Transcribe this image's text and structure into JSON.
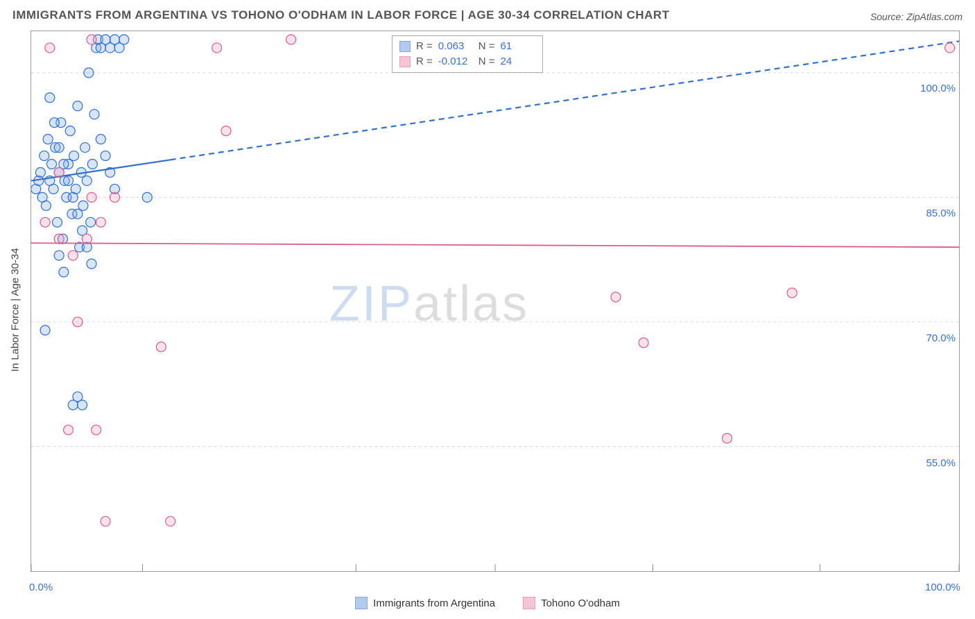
{
  "title": "IMMIGRANTS FROM ARGENTINA VS TOHONO O'ODHAM IN LABOR FORCE | AGE 30-34 CORRELATION CHART",
  "source": "Source: ZipAtlas.com",
  "ylabel": "In Labor Force | Age 30-34",
  "watermark": {
    "zip": "ZIP",
    "rest": "atlas"
  },
  "chart": {
    "type": "scatter",
    "xlim": [
      0,
      100
    ],
    "ylim": [
      40,
      105
    ],
    "x_ticks": [
      0,
      12,
      35,
      50,
      67,
      85,
      100
    ],
    "x_tick_labels": {
      "0": "0.0%",
      "100": "100.0%"
    },
    "y_ticks": [
      55,
      70,
      85,
      100
    ],
    "y_tick_labels": {
      "55": "55.0%",
      "70": "70.0%",
      "85": "85.0%",
      "100": "100.0%"
    },
    "grid_color": "#d8d8d8",
    "grid_dash": "4 4",
    "plot_border_color": "#999999",
    "background_color": "#ffffff",
    "marker_radius": 7,
    "marker_stroke_width": 1.2,
    "fill_opacity": 0.3,
    "series": [
      {
        "name": "Immigrants from Argentina",
        "stroke_color": "#2e6fd0",
        "fill_color": "#7ea8e3",
        "trend": {
          "y_at_x0": 87.0,
          "y_at_x100": 103.8,
          "solid_until_x": 15,
          "line_width": 2.2,
          "dash": "8 6"
        },
        "points": [
          [
            0.5,
            86
          ],
          [
            0.8,
            87
          ],
          [
            1.0,
            88
          ],
          [
            1.2,
            85
          ],
          [
            1.4,
            90
          ],
          [
            1.6,
            84
          ],
          [
            1.8,
            92
          ],
          [
            2.0,
            87
          ],
          [
            2.2,
            89
          ],
          [
            2.4,
            86
          ],
          [
            2.6,
            91
          ],
          [
            2.8,
            82
          ],
          [
            3.0,
            88
          ],
          [
            3.2,
            94
          ],
          [
            3.4,
            80
          ],
          [
            3.6,
            87
          ],
          [
            3.8,
            85
          ],
          [
            4.0,
            89
          ],
          [
            4.2,
            93
          ],
          [
            4.4,
            83
          ],
          [
            4.6,
            90
          ],
          [
            4.8,
            86
          ],
          [
            5.0,
            96
          ],
          [
            5.2,
            79
          ],
          [
            5.4,
            88
          ],
          [
            5.6,
            84
          ],
          [
            5.8,
            91
          ],
          [
            6.0,
            87
          ],
          [
            6.2,
            100
          ],
          [
            6.4,
            82
          ],
          [
            6.6,
            89
          ],
          [
            6.8,
            95
          ],
          [
            7.0,
            103
          ],
          [
            7.2,
            104
          ],
          [
            7.5,
            103
          ],
          [
            8.0,
            104
          ],
          [
            8.5,
            103
          ],
          [
            9.0,
            104
          ],
          [
            9.5,
            103
          ],
          [
            10.0,
            104
          ],
          [
            2.0,
            97
          ],
          [
            2.5,
            94
          ],
          [
            3.0,
            91
          ],
          [
            3.5,
            89
          ],
          [
            4.0,
            87
          ],
          [
            4.5,
            85
          ],
          [
            5.0,
            83
          ],
          [
            5.5,
            81
          ],
          [
            6.0,
            79
          ],
          [
            6.5,
            77
          ],
          [
            1.5,
            69
          ],
          [
            12.5,
            85
          ],
          [
            4.5,
            60
          ],
          [
            5.0,
            61
          ],
          [
            5.5,
            60
          ],
          [
            3.0,
            78
          ],
          [
            3.5,
            76
          ],
          [
            7.5,
            92
          ],
          [
            8.0,
            90
          ],
          [
            8.5,
            88
          ],
          [
            9.0,
            86
          ]
        ],
        "R": "0.063",
        "N": "61"
      },
      {
        "name": "Tohono O'odham",
        "stroke_color": "#e05a8a",
        "fill_color": "#f0a0bc",
        "trend": {
          "y_at_x0": 79.5,
          "y_at_x100": 79.0,
          "solid_until_x": 100,
          "line_width": 1.8,
          "dash": ""
        },
        "points": [
          [
            6.5,
            104
          ],
          [
            20,
            103
          ],
          [
            28,
            104
          ],
          [
            99,
            103
          ],
          [
            21,
            93
          ],
          [
            14,
            67
          ],
          [
            4,
            57
          ],
          [
            7,
            57
          ],
          [
            8,
            46
          ],
          [
            15,
            46
          ],
          [
            1.5,
            82
          ],
          [
            3.0,
            80
          ],
          [
            4.5,
            78
          ],
          [
            6.0,
            80
          ],
          [
            7.5,
            82
          ],
          [
            2.0,
            103
          ],
          [
            5.0,
            70
          ],
          [
            6.5,
            85
          ],
          [
            66,
            67.5
          ],
          [
            75,
            56
          ],
          [
            82,
            73.5
          ],
          [
            63,
            73
          ],
          [
            9,
            85
          ],
          [
            3,
            88
          ]
        ],
        "R": "-0.012",
        "N": "24"
      }
    ]
  },
  "stats_box": {
    "rows": [
      {
        "series_idx": 0,
        "R_label": "R =",
        "N_label": "N ="
      },
      {
        "series_idx": 1,
        "R_label": "R =",
        "N_label": "N ="
      }
    ]
  },
  "bottom_legend": [
    {
      "series_idx": 0
    },
    {
      "series_idx": 1
    }
  ]
}
